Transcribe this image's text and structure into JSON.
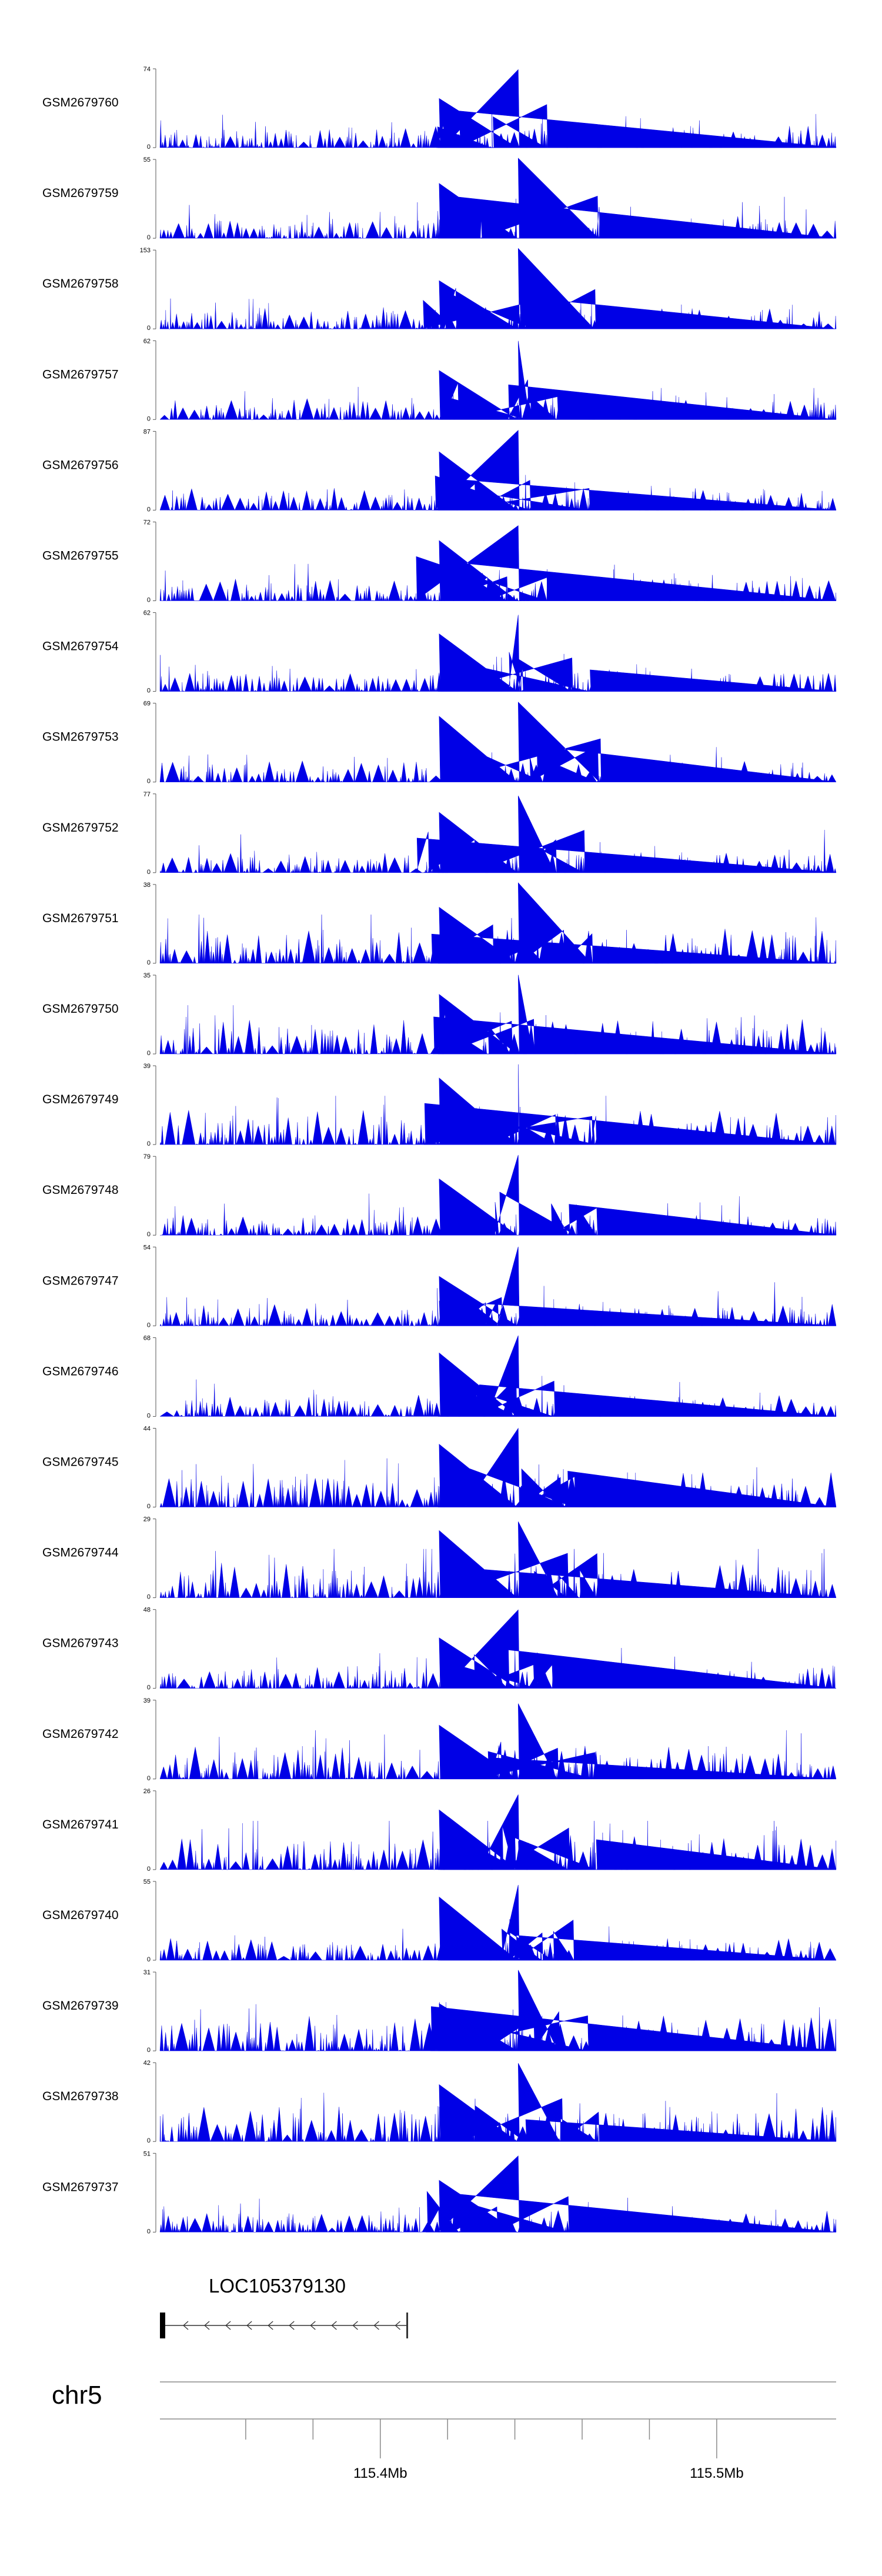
{
  "colors": {
    "signal": "#0000e6",
    "axis": "#555555",
    "text": "#000000",
    "gene": "#333333"
  },
  "chart_data": {
    "type": "area",
    "description_of_layout": "stacked genome-browser coverage tracks",
    "x_unit": "Mb",
    "xlim": [
      115.3345,
      115.5355
    ],
    "tracks": [
      {
        "name": "GSM2679760",
        "ymax": 74
      },
      {
        "name": "GSM2679759",
        "ymax": 55
      },
      {
        "name": "GSM2679758",
        "ymax": 153
      },
      {
        "name": "GSM2679757",
        "ymax": 62
      },
      {
        "name": "GSM2679756",
        "ymax": 87
      },
      {
        "name": "GSM2679755",
        "ymax": 72
      },
      {
        "name": "GSM2679754",
        "ymax": 62
      },
      {
        "name": "GSM2679753",
        "ymax": 69
      },
      {
        "name": "GSM2679752",
        "ymax": 77
      },
      {
        "name": "GSM2679751",
        "ymax": 38
      },
      {
        "name": "GSM2679750",
        "ymax": 35
      },
      {
        "name": "GSM2679749",
        "ymax": 39
      },
      {
        "name": "GSM2679748",
        "ymax": 79
      },
      {
        "name": "GSM2679747",
        "ymax": 54
      },
      {
        "name": "GSM2679746",
        "ymax": 68
      },
      {
        "name": "GSM2679745",
        "ymax": 44
      },
      {
        "name": "GSM2679744",
        "ymax": 29
      },
      {
        "name": "GSM2679743",
        "ymax": 48
      },
      {
        "name": "GSM2679742",
        "ymax": 39
      },
      {
        "name": "GSM2679741",
        "ymax": 26
      },
      {
        "name": "GSM2679740",
        "ymax": 55
      },
      {
        "name": "GSM2679739",
        "ymax": 31
      },
      {
        "name": "GSM2679738",
        "ymax": 42
      },
      {
        "name": "GSM2679737",
        "ymax": 51
      }
    ],
    "ymin_label": "0",
    "peaks_x_mb": [
      115.4175,
      115.441
    ],
    "gene": {
      "name": "LOC105379130",
      "start_mb": 115.3345,
      "end_mb": 115.408,
      "strand": "-"
    },
    "chromosome": "chr5",
    "x_ticks_labeled": [
      {
        "value": 115.4,
        "label": "115.4Mb"
      },
      {
        "value": 115.5,
        "label": "115.5Mb"
      }
    ],
    "x_ticks_minor": [
      115.36,
      115.38,
      115.42,
      115.44,
      115.46,
      115.48
    ]
  }
}
